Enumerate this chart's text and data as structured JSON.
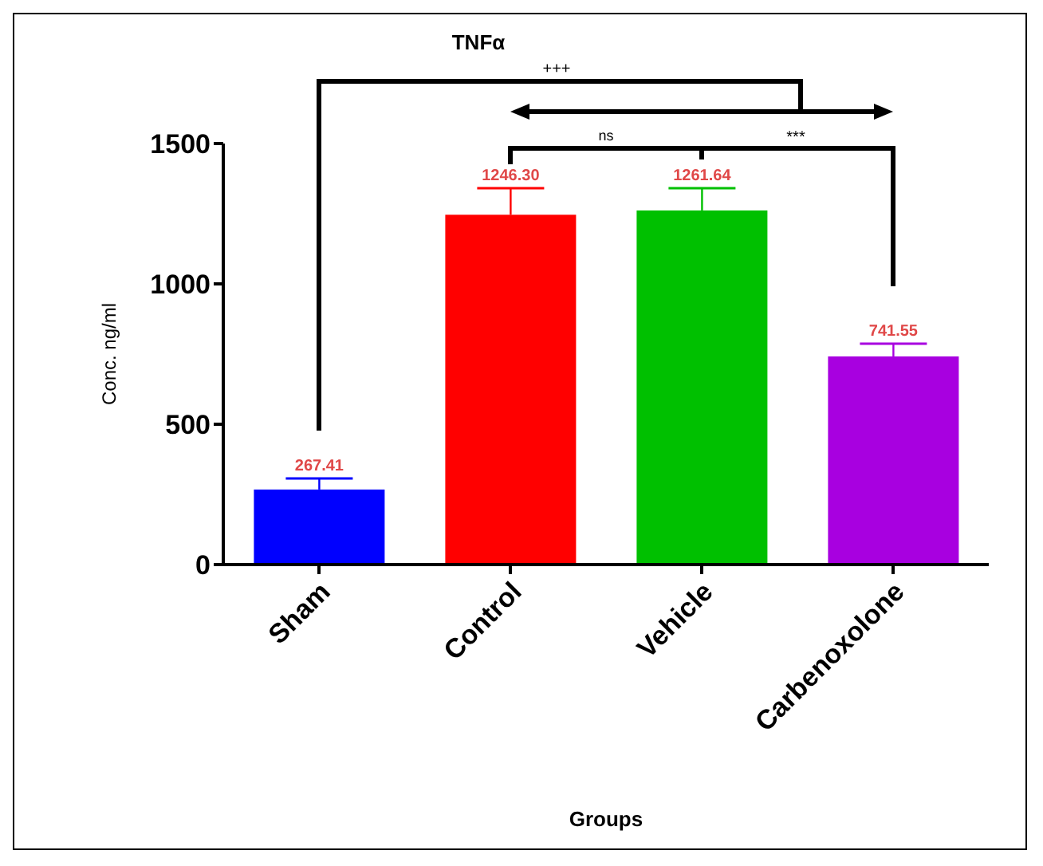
{
  "chart_data": {
    "type": "bar",
    "title": "TNFα",
    "xlabel": "Groups",
    "ylabel": "Conc. ng/ml",
    "categories": [
      "Sham",
      "Control",
      "Vehicle",
      "Carbenoxolone"
    ],
    "values": [
      267.41,
      1246.3,
      1261.64,
      741.55
    ],
    "colors": [
      "#0000ff",
      "#ff0000",
      "#00c000",
      "#a800e0"
    ],
    "errors": [
      [
        267.41,
        307
      ],
      [
        1246.3,
        1341
      ],
      [
        1261.64,
        1341
      ],
      [
        741.55,
        787
      ]
    ],
    "ylim": [
      0,
      1500
    ],
    "yticks": [
      0,
      500,
      1000,
      1500
    ],
    "grid": false,
    "legend": false,
    "value_labels": [
      "267.41",
      "1246.30",
      "1261.64",
      "741.55"
    ],
    "annotations": [
      "+++",
      "ns",
      "***"
    ]
  }
}
